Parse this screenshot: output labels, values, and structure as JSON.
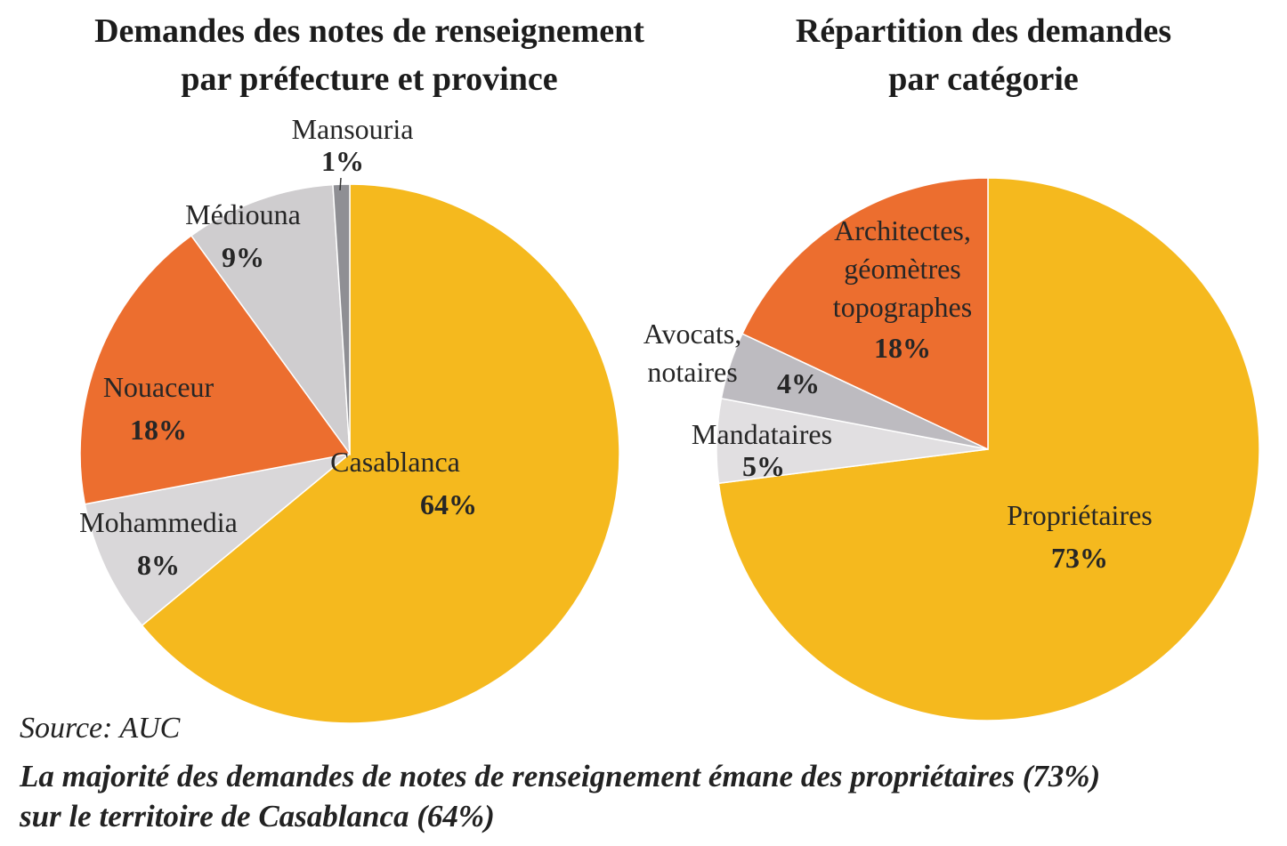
{
  "chart_data": [
    {
      "type": "pie",
      "title": [
        "Demandes des notes de renseignement",
        "par préfecture et province"
      ],
      "slices": [
        {
          "label": "Casablanca",
          "value": 64,
          "value_label": "64%",
          "color": "#f5b91e"
        },
        {
          "label": "Mohammedia",
          "value": 8,
          "value_label": "8%",
          "color": "#d9d7d9"
        },
        {
          "label": "Nouaceur",
          "value": 18,
          "value_label": "18%",
          "color": "#ec6e2f"
        },
        {
          "label": "Médiouna",
          "value": 9,
          "value_label": "9%",
          "color": "#cfcdcf"
        },
        {
          "label": "Mansouria",
          "value": 1,
          "value_label": "1%",
          "color": "#8f8f94"
        }
      ]
    },
    {
      "type": "pie",
      "title": [
        "Répartition des demandes",
        "par catégorie"
      ],
      "slices": [
        {
          "label": "Propriétaires",
          "value": 73,
          "value_label": "73%",
          "color": "#f5b91e"
        },
        {
          "label": "Mandataires",
          "value": 5,
          "value_label": "5%",
          "color": "#e1dfe1"
        },
        {
          "label": "Avocats, notaires",
          "value": 4,
          "value_label": "4%",
          "color": "#bdbbc0"
        },
        {
          "label": "Architectes, géomètres topographes",
          "value": 18,
          "value_label": "18%",
          "color": "#ec6e2f"
        }
      ]
    }
  ],
  "source": "Source: AUC",
  "caption": [
    "La majorité des demandes de notes de renseignement émane des propriétaires (73%)",
    "sur le territoire de Casablanca (64%)"
  ]
}
